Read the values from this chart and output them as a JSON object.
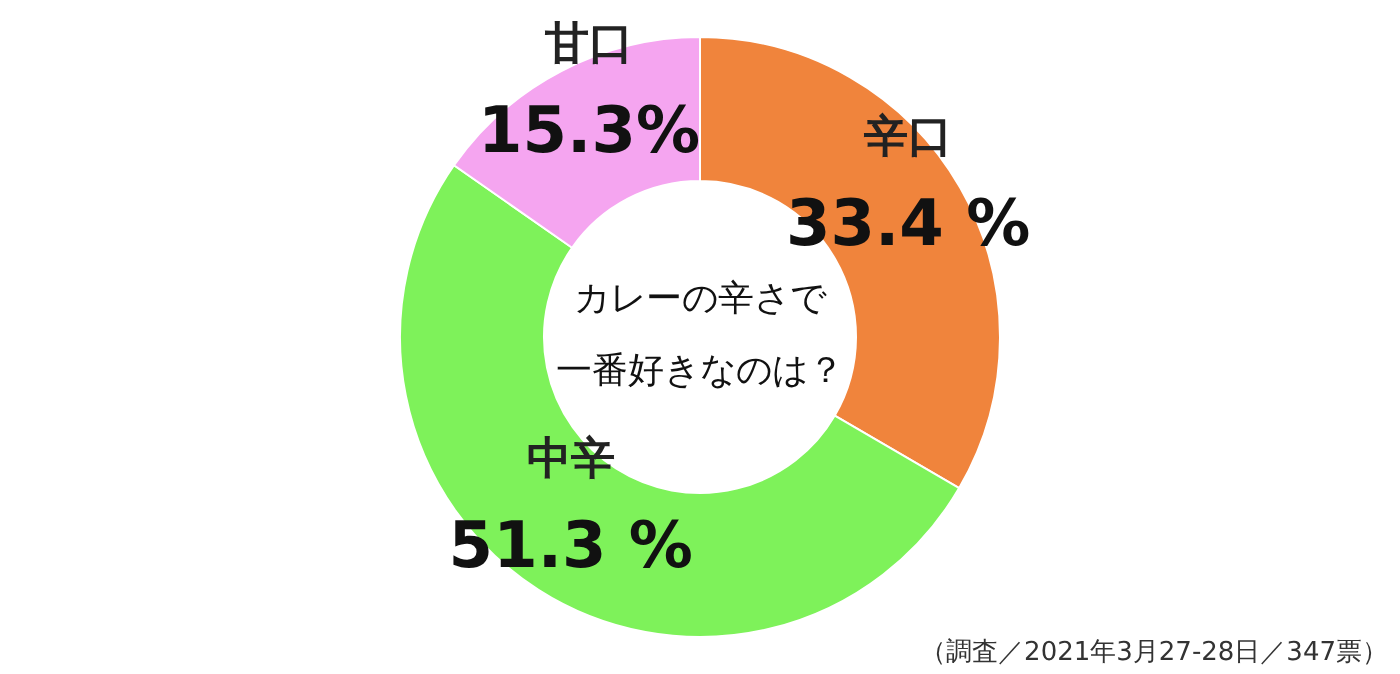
{
  "chart_data": {
    "type": "donut",
    "title": "カレーの辛さで",
    "subtitle": "一番好きなのは？",
    "categories": [
      "辛口",
      "中辛",
      "甘口"
    ],
    "values": [
      33.4,
      51.3,
      15.3
    ],
    "colors": [
      "#f0843c",
      "#7ef25a",
      "#f5a5f0"
    ],
    "value_labels": [
      "33.4 %",
      "51.3 %",
      "15.3%"
    ],
    "annotations": [
      "（調査／2021年3月27-28日／347票）"
    ]
  }
}
